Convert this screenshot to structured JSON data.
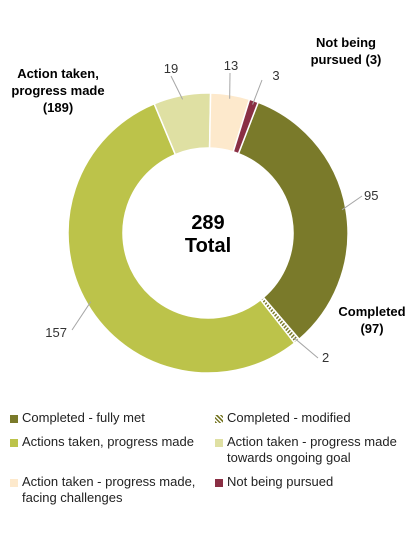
{
  "chart_data": {
    "type": "donut",
    "total": 289,
    "center_total_label": "Total",
    "slices": [
      {
        "label": "Completed - fully met",
        "value": 95,
        "color": "#7a7a2a",
        "pattern": "solid"
      },
      {
        "label": "Completed - modified",
        "value": 2,
        "color": "#7a7a2a",
        "pattern": "hatched"
      },
      {
        "label": "Actions taken, progress made",
        "value": 157,
        "color": "#bcc34a",
        "pattern": "solid"
      },
      {
        "label": "Action taken - progress made towards ongoing goal",
        "value": 19,
        "color": "#dfe0a3",
        "pattern": "solid"
      },
      {
        "label": "Action taken - progress made, facing challenges",
        "value": 13,
        "color": "#fde9cc",
        "pattern": "solid"
      },
      {
        "label": "Not being pursued",
        "value": 3,
        "color": "#8a2f44",
        "pattern": "solid"
      }
    ],
    "group_labels": {
      "completed": [
        "Completed",
        "(97)"
      ],
      "action_taken": [
        "Action taken,",
        "progress made",
        "(189)"
      ],
      "not_pursued": [
        "Not being",
        "pursued (3)"
      ]
    }
  }
}
